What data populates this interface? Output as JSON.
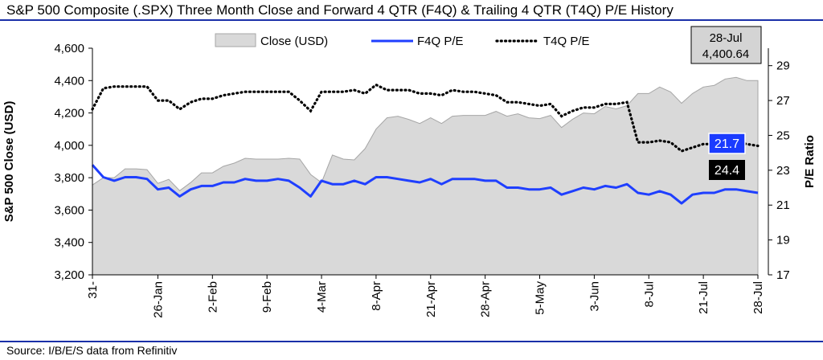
{
  "header": {
    "title": "S&P 500 Composite (.SPX) Three Month Close and Forward 4 QTR (F4Q) & Trailing 4 QTR (T4Q) P/E History",
    "source": "Source: I/B/E/S data from Refinitiv"
  },
  "colors": {
    "rule": "#1a2fa8",
    "area_fill": "#d9d9d9",
    "area_stroke": "#a6a6a6",
    "f4q_line": "#1f3fff",
    "t4q_line": "#000000",
    "f4q_badge": "#1a3bff",
    "t4q_badge": "#000000",
    "annot_fill": "#d4d4d4"
  },
  "chart_data": {
    "type": "area+line",
    "ylabel_left": "S&P 500 Close (USD)",
    "ylabel_right": "P/E Ratio",
    "ylim_left": [
      3200,
      4600
    ],
    "yticks_left": [
      "3,200",
      "3,400",
      "3,600",
      "3,800",
      "4,000",
      "4,200",
      "4,400",
      "4,600"
    ],
    "ylim_right": [
      17,
      30
    ],
    "yticks_right": [
      "17",
      "19",
      "21",
      "23",
      "25",
      "27",
      "29"
    ],
    "xtick_labels": [
      "31-",
      "26-Jan",
      "2-Feb",
      "9-Feb",
      "4-Mar",
      "8-Apr",
      "21-Apr",
      "28-Apr",
      "5-May",
      "3-Jun",
      "8-Jul",
      "21-Jul",
      "28-Jul"
    ],
    "xtick_positions": [
      0,
      6,
      11,
      16,
      21,
      26,
      31,
      36,
      41,
      46,
      51,
      56,
      61
    ],
    "legend": [
      "Close (USD)",
      "F4Q P/E",
      "T4Q P/E"
    ],
    "legend_position": "top",
    "grid": false,
    "series": [
      {
        "name": "Close (USD)",
        "axis": "left",
        "style": "area",
        "values": [
          3755,
          3800,
          3800,
          3855,
          3855,
          3850,
          3765,
          3790,
          3720,
          3770,
          3830,
          3830,
          3870,
          3890,
          3920,
          3915,
          3915,
          3915,
          3920,
          3915,
          3820,
          3770,
          3940,
          3915,
          3910,
          3980,
          4100,
          4170,
          4180,
          4160,
          4135,
          4170,
          4135,
          4180,
          4185,
          4185,
          4185,
          4210,
          4180,
          4195,
          4170,
          4165,
          4185,
          4110,
          4160,
          4200,
          4195,
          4240,
          4225,
          4245,
          4320,
          4320,
          4360,
          4330,
          4260,
          4320,
          4360,
          4370,
          4410,
          4420,
          4400,
          4400
        ]
      },
      {
        "name": "F4Q P/E",
        "axis": "right",
        "style": "line",
        "values": [
          23.3,
          22.6,
          22.4,
          22.6,
          22.6,
          22.5,
          21.9,
          22.0,
          21.5,
          21.9,
          22.1,
          22.1,
          22.3,
          22.3,
          22.5,
          22.4,
          22.4,
          22.5,
          22.4,
          22.0,
          21.5,
          22.4,
          22.2,
          22.2,
          22.4,
          22.2,
          22.6,
          22.6,
          22.5,
          22.4,
          22.3,
          22.5,
          22.2,
          22.5,
          22.5,
          22.5,
          22.4,
          22.4,
          22.0,
          22.0,
          21.9,
          21.9,
          22.0,
          21.6,
          21.8,
          22.0,
          21.9,
          22.1,
          22.0,
          22.2,
          21.7,
          21.6,
          21.8,
          21.6,
          21.1,
          21.6,
          21.7,
          21.7,
          21.9,
          21.9,
          21.8,
          21.7
        ]
      },
      {
        "name": "T4Q P/E",
        "axis": "right",
        "style": "dotted",
        "values": [
          26.5,
          27.7,
          27.8,
          27.8,
          27.8,
          27.8,
          27.0,
          27.0,
          26.5,
          26.9,
          27.1,
          27.1,
          27.3,
          27.4,
          27.5,
          27.5,
          27.5,
          27.5,
          27.5,
          27.0,
          26.4,
          27.5,
          27.5,
          27.5,
          27.6,
          27.4,
          27.9,
          27.6,
          27.6,
          27.6,
          27.4,
          27.4,
          27.3,
          27.6,
          27.5,
          27.5,
          27.4,
          27.3,
          26.9,
          26.9,
          26.8,
          26.7,
          26.8,
          26.1,
          26.4,
          26.6,
          26.6,
          26.8,
          26.8,
          26.9,
          24.6,
          24.6,
          24.7,
          24.6,
          24.1,
          24.3,
          24.5,
          24.5,
          24.5,
          24.6,
          24.5,
          24.4
        ]
      }
    ],
    "annotations": {
      "close_label": {
        "date": "28-Jul",
        "value": "4,400.64"
      },
      "f4q_value": "21.7",
      "t4q_value": "24.4"
    }
  }
}
